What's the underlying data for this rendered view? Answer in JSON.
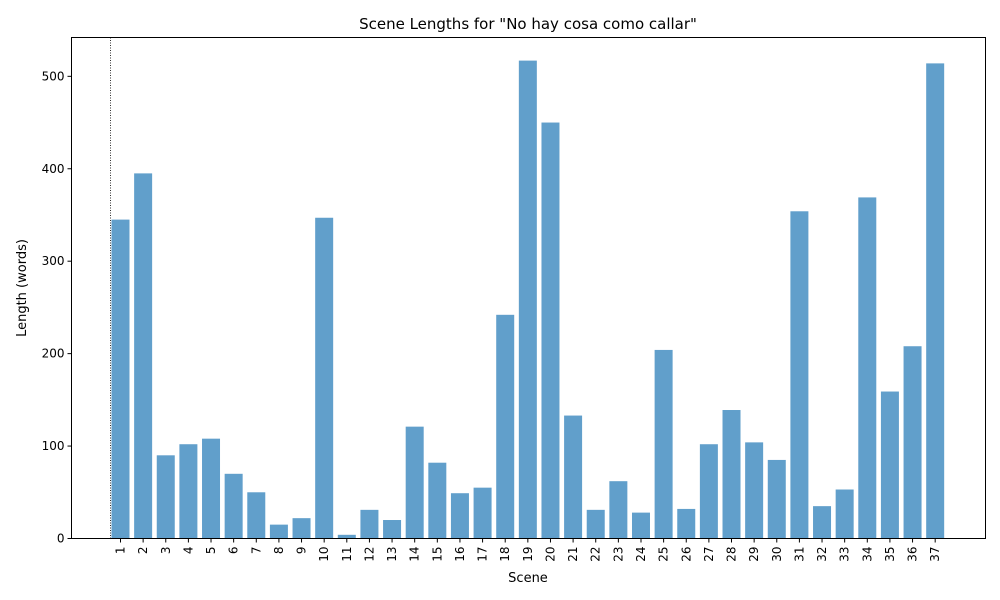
{
  "chart_data": {
    "type": "bar",
    "title": "Scene Lengths for \"No hay cosa como callar\"",
    "xlabel": "Scene",
    "ylabel": "Length (words)",
    "categories": [
      "1",
      "2",
      "3",
      "4",
      "5",
      "6",
      "7",
      "8",
      "9",
      "10",
      "11",
      "12",
      "13",
      "14",
      "15",
      "16",
      "17",
      "18",
      "19",
      "20",
      "21",
      "22",
      "23",
      "24",
      "25",
      "26",
      "27",
      "28",
      "29",
      "30",
      "31",
      "32",
      "33",
      "34",
      "35",
      "36",
      "37"
    ],
    "values": [
      345,
      395,
      90,
      102,
      108,
      70,
      50,
      15,
      22,
      347,
      4,
      31,
      20,
      121,
      82,
      49,
      55,
      242,
      517,
      450,
      133,
      31,
      62,
      28,
      204,
      32,
      102,
      139,
      104,
      85,
      354,
      35,
      53,
      369,
      159,
      208,
      514
    ],
    "ylim": [
      0,
      542
    ],
    "yticks": [
      0,
      100,
      200,
      300,
      400,
      500
    ],
    "bar_color": "#619fcb",
    "marker_line": {
      "at_category": "1",
      "style": "dotted",
      "color": "#000000"
    },
    "grid": false,
    "legend": "none"
  }
}
